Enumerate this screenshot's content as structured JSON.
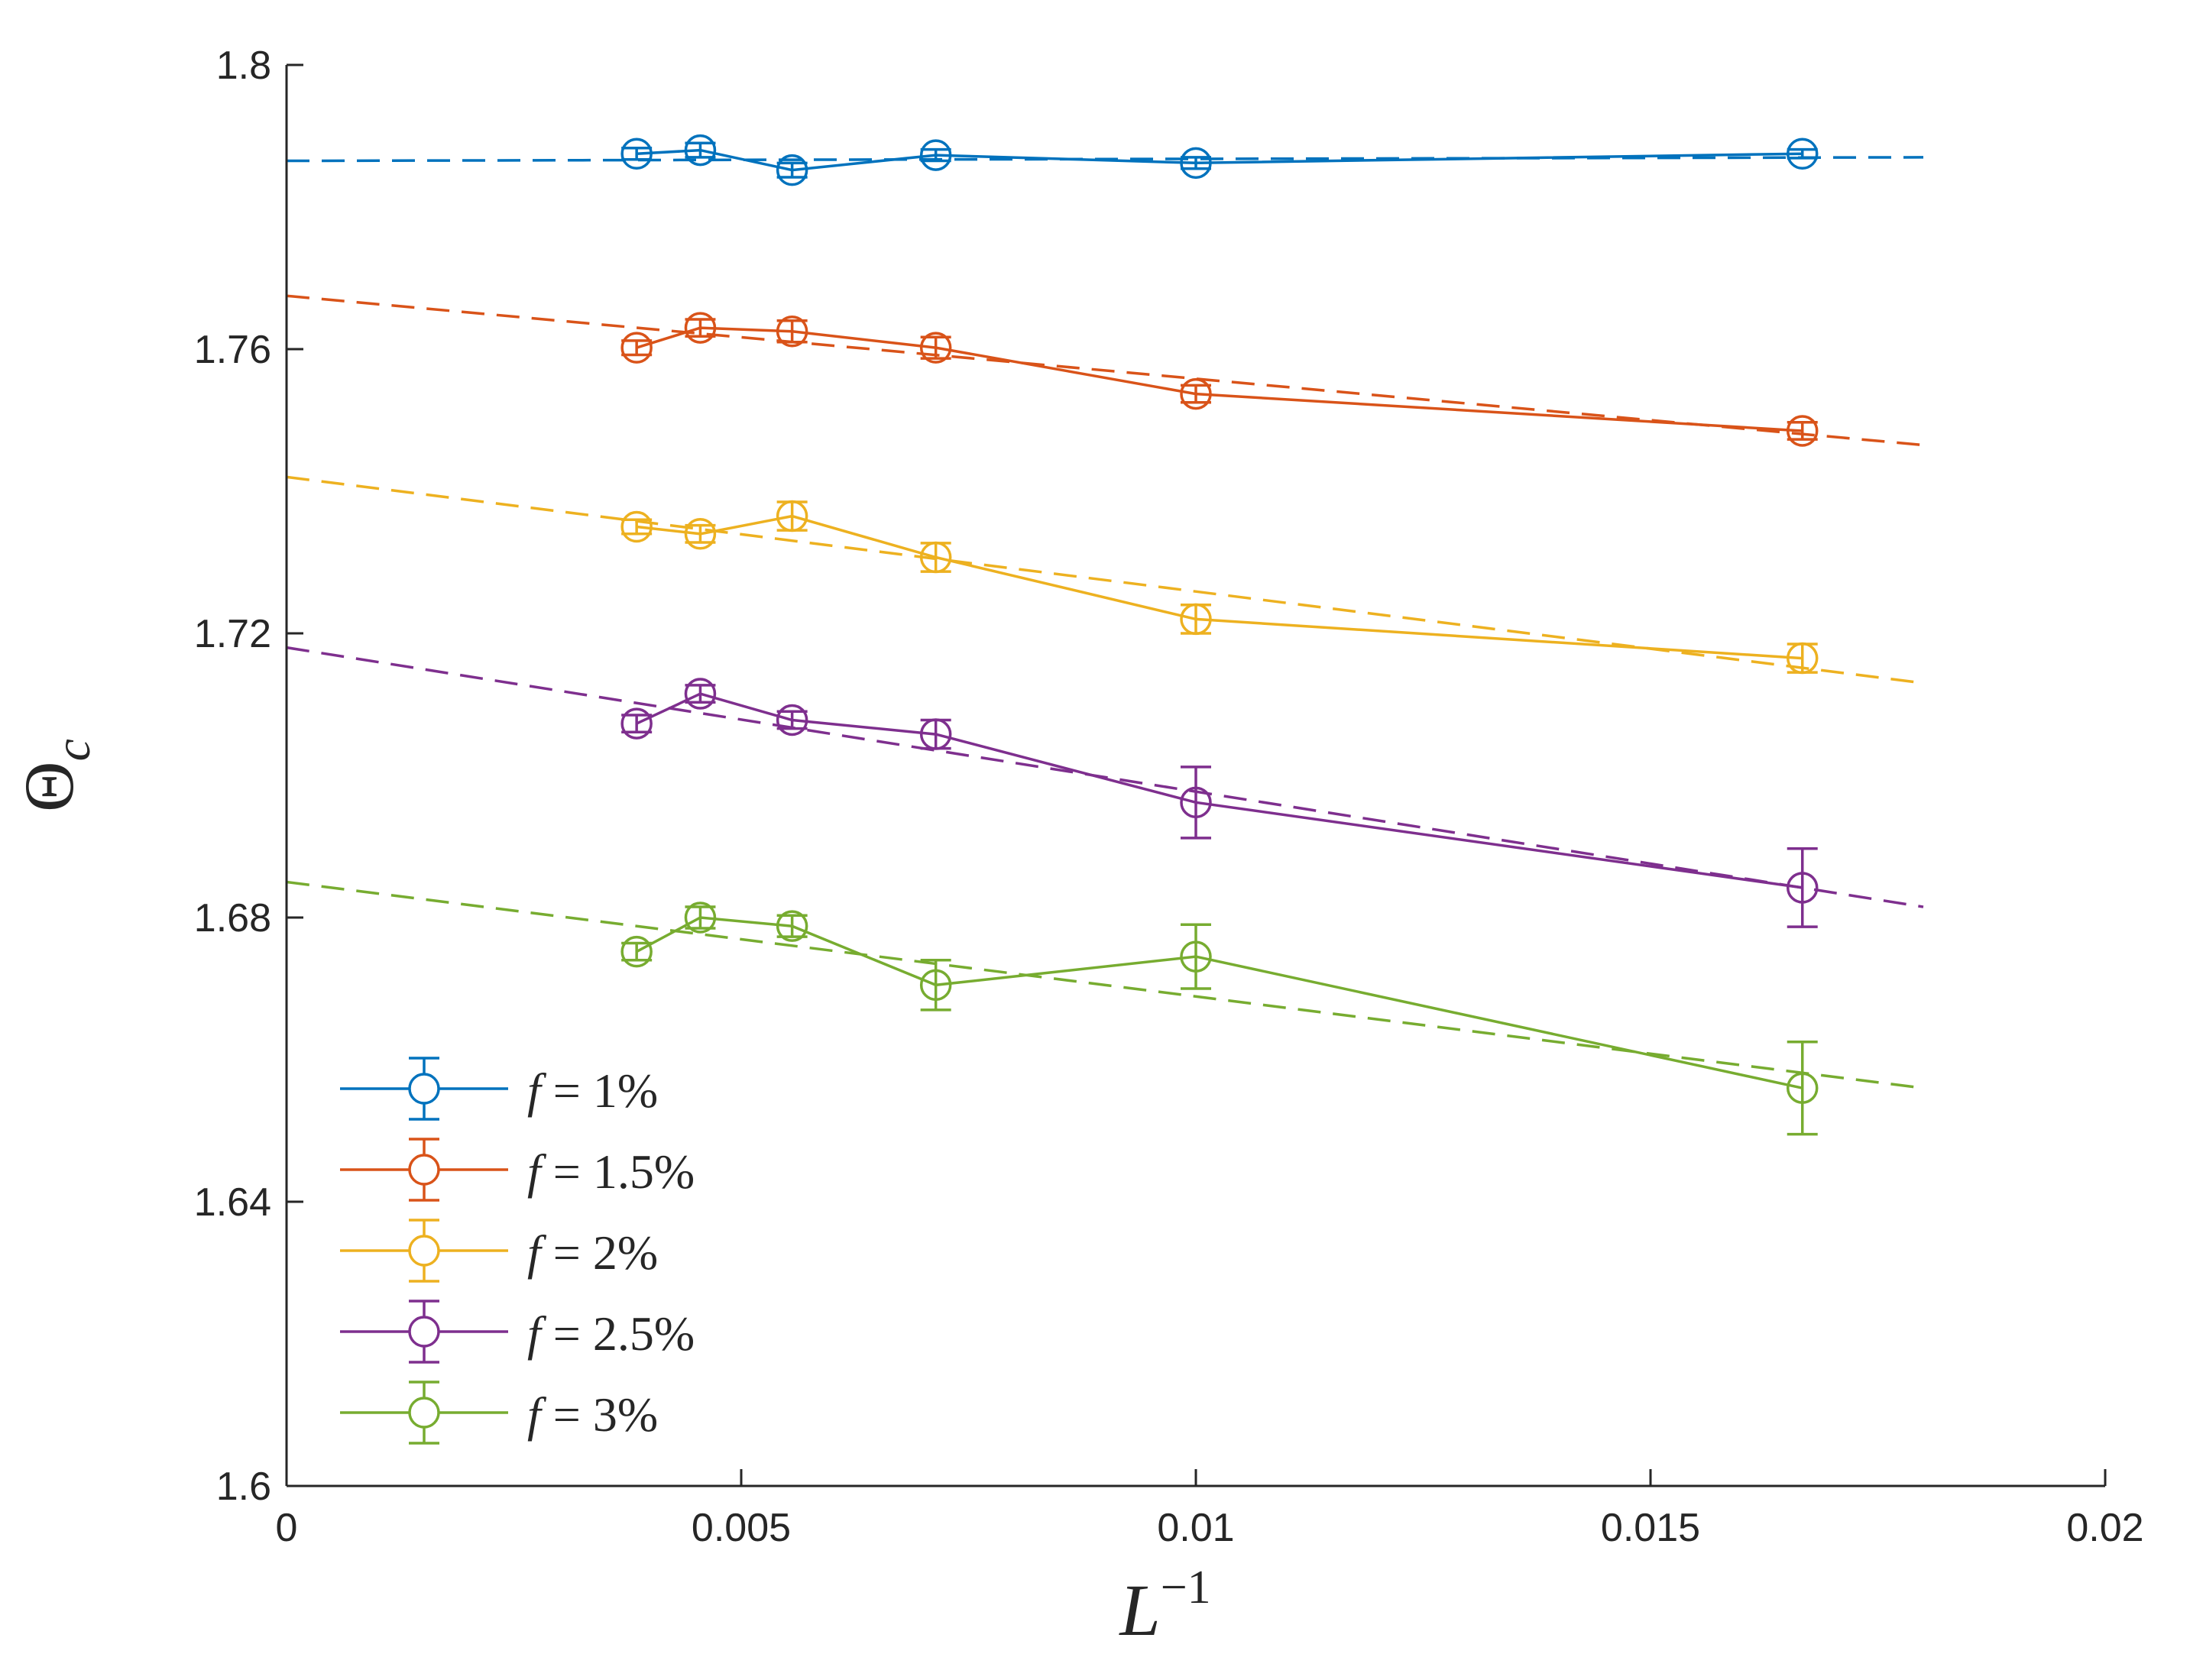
{
  "chart_data": {
    "type": "line",
    "title": "",
    "xlabel": "L",
    "xlabel_superscript": "−1",
    "ylabel": "Θ",
    "ylabel_subscript": "c",
    "xlim": [
      0,
      0.02
    ],
    "ylim": [
      1.6,
      1.8
    ],
    "xticks": [
      0,
      0.005,
      0.01,
      0.015,
      0.02
    ],
    "xtick_labels": [
      "0",
      "0.005",
      "0.01",
      "0.015",
      "0.02"
    ],
    "yticks": [
      1.6,
      1.64,
      1.68,
      1.72,
      1.76,
      1.8
    ],
    "ytick_labels": [
      "1.6",
      "1.64",
      "1.68",
      "1.72",
      "1.76",
      "1.8"
    ],
    "grid": false,
    "legend_position": "bottom-left",
    "x": [
      0.00385,
      0.00455,
      0.00556,
      0.00714,
      0.01,
      0.01667
    ],
    "series": [
      {
        "name": "f = 1%",
        "legend_var": "f",
        "legend_rest": " = 1%",
        "color": "#0072BD",
        "values": [
          1.7875,
          1.788,
          1.7852,
          1.7873,
          1.7862,
          1.7875
        ],
        "errors": [
          0.0008,
          0.001,
          0.001,
          0.0008,
          0.0008,
          0.0006
        ],
        "fit": [
          1.7865,
          1.787
        ]
      },
      {
        "name": "f = 1.5%",
        "legend_var": "f",
        "legend_rest": " = 1.5%",
        "color": "#D95319",
        "values": [
          1.7602,
          1.763,
          1.7625,
          1.7602,
          1.7537,
          1.7485
        ],
        "errors": [
          0.001,
          0.0012,
          0.0015,
          0.0015,
          0.0012,
          0.0012
        ],
        "fit": [
          1.7675,
          1.7465
        ]
      },
      {
        "name": "f = 2%",
        "legend_var": "f",
        "legend_rest": " = 2%",
        "color": "#EDB120",
        "values": [
          1.735,
          1.734,
          1.7365,
          1.7307,
          1.722,
          1.7165
        ],
        "errors": [
          0.001,
          0.0012,
          0.002,
          0.002,
          0.002,
          0.002
        ],
        "fit": [
          1.742,
          1.713
        ]
      },
      {
        "name": "f = 2.5%",
        "legend_var": "f",
        "legend_rest": " = 2.5%",
        "color": "#7E2F8E",
        "values": [
          1.7073,
          1.7115,
          1.7078,
          1.7058,
          1.6962,
          1.6842
        ],
        "errors": [
          0.0012,
          0.0012,
          0.0012,
          0.002,
          0.005,
          0.0055
        ],
        "fit": [
          1.718,
          1.6815
        ]
      },
      {
        "name": "f = 3%",
        "legend_var": "f",
        "legend_rest": " = 3%",
        "color": "#77AC30",
        "values": [
          1.6752,
          1.68,
          1.6788,
          1.6705,
          1.6745,
          1.656
        ],
        "errors": [
          0.0012,
          0.0015,
          0.0015,
          0.0035,
          0.0045,
          0.0065
        ],
        "fit": [
          1.685,
          1.656
        ]
      }
    ],
    "fit_x_range": [
      0,
      0.018
    ],
    "fit_style": "dashed"
  }
}
